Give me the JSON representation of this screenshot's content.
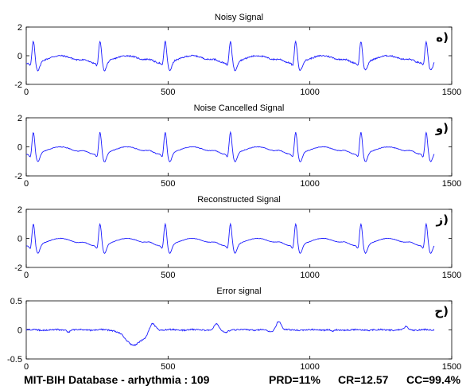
{
  "chart_data": [
    {
      "type": "line",
      "title": "Noisy Signal",
      "tag": "ه)",
      "xlim": [
        0,
        1500
      ],
      "ylim": [
        -2,
        2
      ],
      "xticks": [
        "0",
        "500",
        "1000",
        "1500"
      ],
      "yticks": [
        "2",
        "0",
        "-2"
      ],
      "ytick_values": [
        2,
        0,
        -2
      ],
      "series": [
        {
          "color": "#1a1aff",
          "beats": [
            25,
            260,
            490,
            720,
            950,
            1180,
            1410
          ],
          "n_samples": 1440,
          "noise_amp": 0.05
        }
      ]
    },
    {
      "type": "line",
      "title": "Noise Cancelled Signal",
      "tag": "و)",
      "xlim": [
        0,
        1500
      ],
      "ylim": [
        -2,
        2
      ],
      "xticks": [
        "0",
        "500",
        "1000",
        "1500"
      ],
      "yticks": [
        "2",
        "0",
        "-2"
      ],
      "ytick_values": [
        2,
        0,
        -2
      ],
      "series": [
        {
          "color": "#1a1aff",
          "beats": [
            25,
            260,
            490,
            720,
            950,
            1180,
            1410
          ],
          "n_samples": 1440,
          "noise_amp": 0.02
        }
      ]
    },
    {
      "type": "line",
      "title": "Reconstructed Signal",
      "tag": "ز)",
      "xlim": [
        0,
        1500
      ],
      "ylim": [
        -2,
        2
      ],
      "xticks": [
        "0",
        "500",
        "1000",
        "1500"
      ],
      "yticks": [
        "2",
        "0",
        "-2"
      ],
      "ytick_values": [
        2,
        0,
        -2
      ],
      "series": [
        {
          "color": "#1a1aff",
          "beats": [
            25,
            260,
            490,
            720,
            950,
            1180,
            1410
          ],
          "n_samples": 1440,
          "noise_amp": 0.015
        }
      ]
    },
    {
      "type": "line",
      "title": "Error signal",
      "tag": "ح)",
      "xlim": [
        0,
        1500
      ],
      "ylim": [
        -0.5,
        0.5
      ],
      "xticks": [
        "0",
        "500",
        "1000",
        "1500"
      ],
      "yticks": [
        "0.5",
        "0",
        "-0.5"
      ],
      "ytick_values": [
        0.5,
        0,
        -0.5
      ],
      "series": [
        {
          "color": "#1a1aff",
          "n_samples": 1440,
          "noise_amp": 0.012,
          "features": [
            {
              "x": 378,
              "amp": -0.26,
              "width": 28
            },
            {
              "x": 445,
              "amp": 0.12,
              "width": 10
            },
            {
              "x": 420,
              "amp": -0.06,
              "width": 10
            },
            {
              "x": 670,
              "amp": 0.1,
              "width": 8
            },
            {
              "x": 700,
              "amp": -0.04,
              "width": 8
            },
            {
              "x": 890,
              "amp": 0.15,
              "width": 8
            },
            {
              "x": 860,
              "amp": -0.03,
              "width": 8
            },
            {
              "x": 1340,
              "amp": 0.06,
              "width": 6
            },
            {
              "x": 150,
              "amp": -0.03,
              "width": 6
            },
            {
              "x": 1080,
              "amp": -0.03,
              "width": 6
            }
          ]
        }
      ]
    }
  ],
  "footer": {
    "database": "MIT-BIH Database - arhythmia : 109",
    "prd": "PRD=11%",
    "cr": "CR=12.57",
    "cc": "CC=99.4%"
  }
}
